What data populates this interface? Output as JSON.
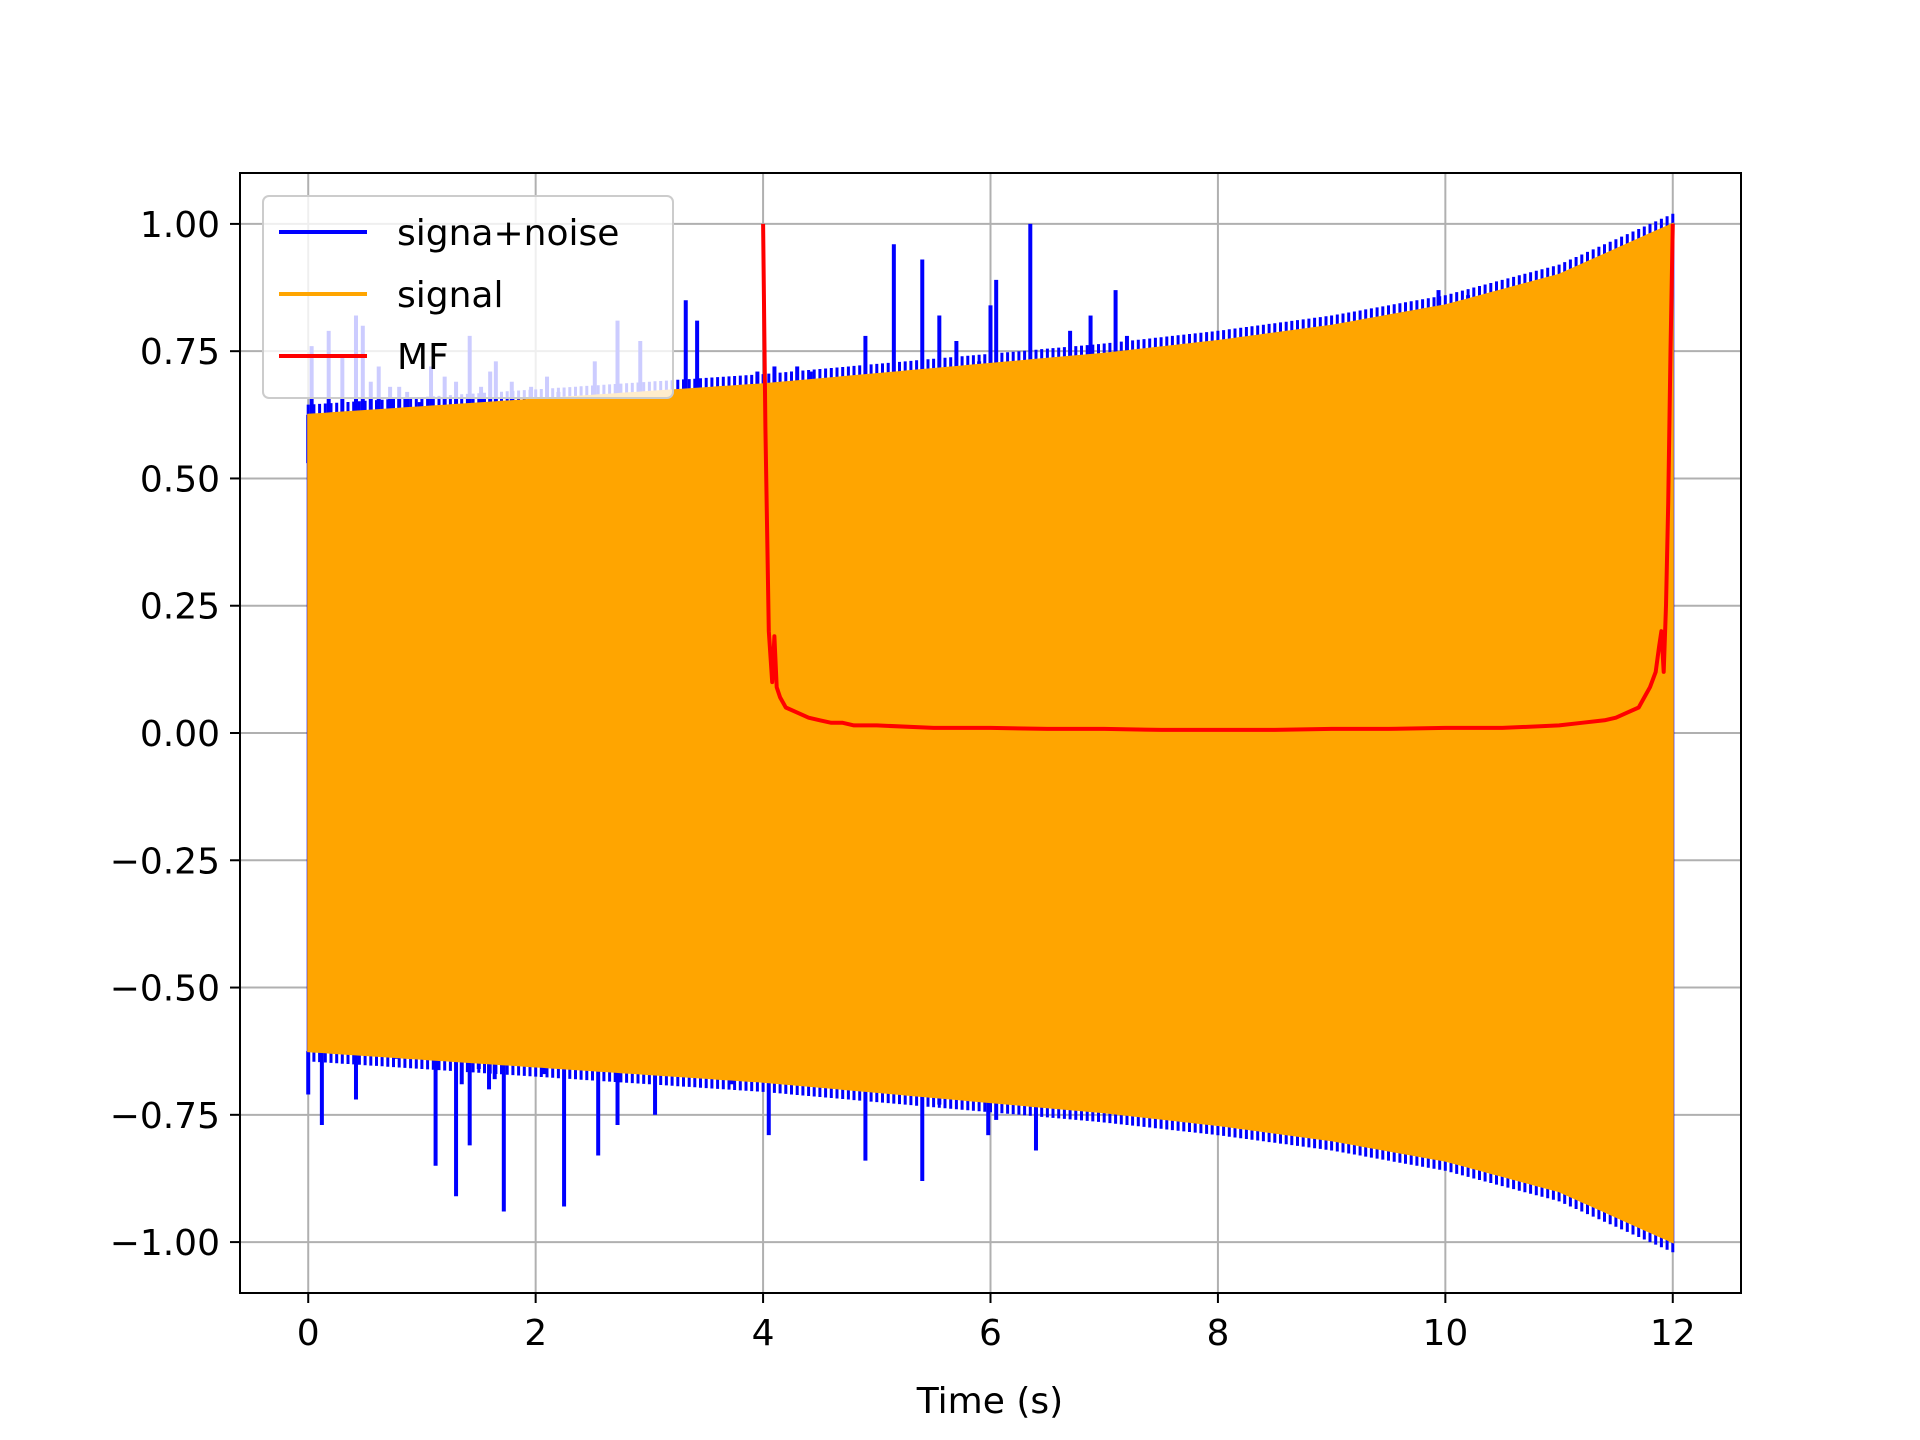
{
  "chart_data": {
    "type": "line",
    "title": "",
    "xlabel": "Time (s)",
    "ylabel": "",
    "xlim": [
      -0.6,
      12.6
    ],
    "ylim": [
      -1.1,
      1.1
    ],
    "xticks": [
      0,
      2,
      4,
      6,
      8,
      10,
      12
    ],
    "yticks": [
      -1.0,
      -0.75,
      -0.5,
      -0.25,
      0.0,
      0.25,
      0.5,
      0.75,
      1.0
    ],
    "xtick_labels": [
      "0",
      "2",
      "4",
      "6",
      "8",
      "10",
      "12"
    ],
    "ytick_labels": [
      "−1.00",
      "−0.75",
      "−0.50",
      "−0.25",
      "0.00",
      "0.25",
      "0.50",
      "0.75",
      "1.00"
    ],
    "grid": true,
    "legend_position": "top-left",
    "series": [
      {
        "name": "signa+noise",
        "color": "#0000ff",
        "spikes_up": [
          [
            0.0,
            0.53
          ],
          [
            0.03,
            0.76
          ],
          [
            0.07,
            0.62
          ],
          [
            0.18,
            0.79
          ],
          [
            0.3,
            0.74
          ],
          [
            0.42,
            0.82
          ],
          [
            0.48,
            0.8
          ],
          [
            0.55,
            0.69
          ],
          [
            0.62,
            0.72
          ],
          [
            0.72,
            0.68
          ],
          [
            0.8,
            0.68
          ],
          [
            0.87,
            0.67
          ],
          [
            0.98,
            0.65
          ],
          [
            1.08,
            0.72
          ],
          [
            1.2,
            0.7
          ],
          [
            1.3,
            0.69
          ],
          [
            1.42,
            0.78
          ],
          [
            1.52,
            0.68
          ],
          [
            1.6,
            0.71
          ],
          [
            1.65,
            0.73
          ],
          [
            1.79,
            0.69
          ],
          [
            1.96,
            0.68
          ],
          [
            2.1,
            0.7
          ],
          [
            2.2,
            0.67
          ],
          [
            2.38,
            0.66
          ],
          [
            2.52,
            0.73
          ],
          [
            2.72,
            0.81
          ],
          [
            2.92,
            0.77
          ],
          [
            3.05,
            0.67
          ],
          [
            3.32,
            0.85
          ],
          [
            3.42,
            0.81
          ],
          [
            3.95,
            0.71
          ],
          [
            4.1,
            0.72
          ],
          [
            4.3,
            0.72
          ],
          [
            4.42,
            0.71
          ],
          [
            4.9,
            0.78
          ],
          [
            5.15,
            0.96
          ],
          [
            5.4,
            0.93
          ],
          [
            5.55,
            0.82
          ],
          [
            5.7,
            0.77
          ],
          [
            5.9,
            0.73
          ],
          [
            6.0,
            0.84
          ],
          [
            6.05,
            0.89
          ],
          [
            6.35,
            1.0
          ],
          [
            6.5,
            0.72
          ],
          [
            6.7,
            0.79
          ],
          [
            6.88,
            0.82
          ],
          [
            7.1,
            0.87
          ],
          [
            7.2,
            0.78
          ],
          [
            9.94,
            0.87
          ],
          [
            10.2,
            0.86
          ],
          [
            10.6,
            0.82
          ]
        ],
        "spikes_down": [
          [
            0.0,
            -0.71
          ],
          [
            0.12,
            -0.77
          ],
          [
            0.42,
            -0.72
          ],
          [
            0.78,
            -0.64
          ],
          [
            1.12,
            -0.85
          ],
          [
            1.3,
            -0.91
          ],
          [
            1.35,
            -0.69
          ],
          [
            1.42,
            -0.81
          ],
          [
            1.5,
            -0.66
          ],
          [
            1.59,
            -0.7
          ],
          [
            1.64,
            -0.68
          ],
          [
            1.72,
            -0.94
          ],
          [
            2.07,
            -0.67
          ],
          [
            2.25,
            -0.93
          ],
          [
            2.55,
            -0.83
          ],
          [
            2.72,
            -0.77
          ],
          [
            3.05,
            -0.75
          ],
          [
            3.73,
            -0.69
          ],
          [
            4.05,
            -0.79
          ],
          [
            4.9,
            -0.84
          ],
          [
            5.4,
            -0.88
          ],
          [
            5.55,
            -0.73
          ],
          [
            5.98,
            -0.79
          ],
          [
            6.05,
            -0.76
          ],
          [
            6.4,
            -0.82
          ],
          [
            6.9,
            -0.74
          ],
          [
            7.35,
            -0.75
          ]
        ]
      },
      {
        "name": "signal",
        "color": "#ffa500",
        "envelope_t": [
          0,
          1,
          2,
          3,
          4,
          5,
          6,
          7,
          8,
          9,
          10,
          11,
          12
        ],
        "envelope_amplitude": [
          0.625,
          0.64,
          0.655,
          0.67,
          0.685,
          0.705,
          0.725,
          0.745,
          0.77,
          0.8,
          0.84,
          0.9,
          1.0
        ]
      },
      {
        "name": "MF",
        "color": "#ff0000",
        "x": [
          4.0,
          4.02,
          4.05,
          4.08,
          4.1,
          4.12,
          4.15,
          4.2,
          4.3,
          4.4,
          4.5,
          4.6,
          4.7,
          4.8,
          5.0,
          5.5,
          6.0,
          6.5,
          7.0,
          7.5,
          8.0,
          8.5,
          9.0,
          9.5,
          10.0,
          10.5,
          11.0,
          11.2,
          11.4,
          11.5,
          11.6,
          11.7,
          11.75,
          11.8,
          11.85,
          11.88,
          11.9,
          11.92,
          11.94,
          11.96,
          11.98,
          12.0
        ],
        "y": [
          1.0,
          0.6,
          0.2,
          0.1,
          0.19,
          0.09,
          0.07,
          0.05,
          0.04,
          0.03,
          0.025,
          0.02,
          0.02,
          0.015,
          0.015,
          0.01,
          0.01,
          0.008,
          0.008,
          0.006,
          0.006,
          0.006,
          0.008,
          0.008,
          0.01,
          0.01,
          0.015,
          0.02,
          0.025,
          0.03,
          0.04,
          0.05,
          0.07,
          0.09,
          0.12,
          0.17,
          0.2,
          0.12,
          0.25,
          0.45,
          0.75,
          1.0
        ]
      }
    ]
  }
}
